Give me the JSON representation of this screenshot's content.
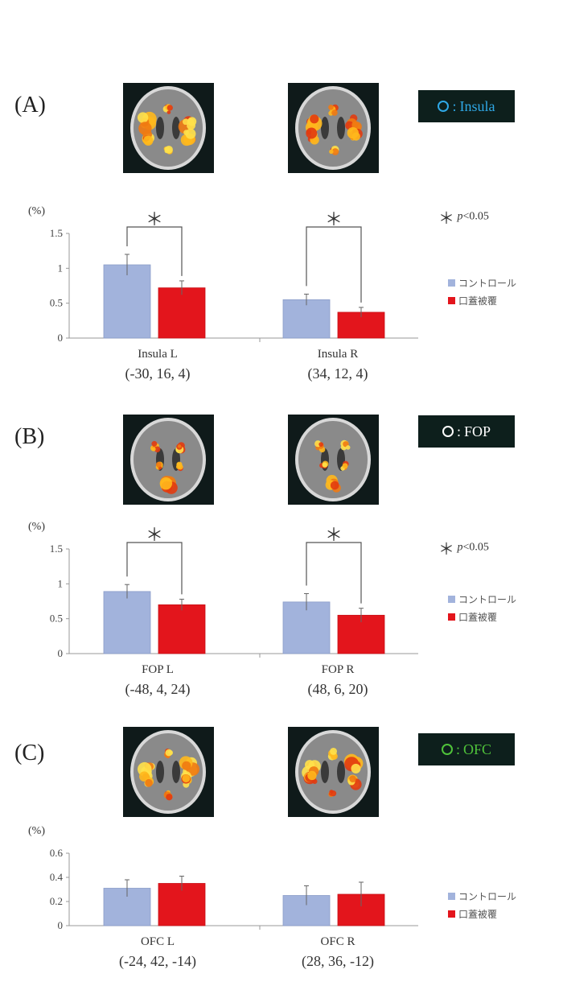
{
  "colors": {
    "control": "#a2b3dc",
    "treatment": "#e3151c",
    "insula_circle": "#2fa8e6",
    "fop_circle": "#ffffff",
    "ofc_circle": "#4fc23a",
    "roi_box_bg": "#0d1f1c"
  },
  "legend": {
    "control": "■コントロール",
    "treatment": "■口蓋被覆"
  },
  "sig_note": {
    "star": "＊",
    "p": "p",
    "rest": "<0.05"
  },
  "panels": [
    {
      "label": "(A)",
      "roi": "Insula",
      "roi_sep": ":"
    },
    {
      "label": "(B)",
      "roi": "FOP",
      "roi_sep": ":"
    },
    {
      "label": "(C)",
      "roi": "OFC",
      "roi_sep": ":"
    }
  ],
  "chart_data": [
    {
      "type": "bar",
      "ylabel": "(%)",
      "ylim": [
        0,
        1.5
      ],
      "yticks": [
        "0",
        "0.5",
        "1",
        "1.5"
      ],
      "categories": [
        "Insula L",
        "Insula R"
      ],
      "coords": [
        "(-30, 16, 4)",
        "(34, 12, 4)"
      ],
      "series": [
        {
          "name": "コントロール",
          "values": [
            1.05,
            0.55
          ],
          "errors": [
            0.15,
            0.08
          ]
        },
        {
          "name": "口蓋被覆",
          "values": [
            0.72,
            0.37
          ],
          "errors": [
            0.1,
            0.07
          ]
        }
      ],
      "significance": [
        "＊",
        "＊"
      ]
    },
    {
      "type": "bar",
      "ylabel": "(%)",
      "ylim": [
        0,
        1.5
      ],
      "yticks": [
        "0",
        "0.5",
        "1",
        "1.5"
      ],
      "categories": [
        "FOP L",
        "FOP R"
      ],
      "coords": [
        "(-48, 4, 24)",
        "(48, 6, 20)"
      ],
      "series": [
        {
          "name": "コントロール",
          "values": [
            0.89,
            0.74
          ],
          "errors": [
            0.1,
            0.12
          ]
        },
        {
          "name": "口蓋被覆",
          "values": [
            0.7,
            0.55
          ],
          "errors": [
            0.08,
            0.1
          ]
        }
      ],
      "significance": [
        "＊",
        "＊"
      ]
    },
    {
      "type": "bar",
      "ylabel": "(%)",
      "ylim": [
        0,
        0.6
      ],
      "yticks": [
        "0",
        "0.2",
        "0.4",
        "0.6"
      ],
      "categories": [
        "OFC L",
        "OFC R"
      ],
      "coords": [
        "(-24, 42, -14)",
        "(28, 36, -12)"
      ],
      "series": [
        {
          "name": "コントロール",
          "values": [
            0.31,
            0.25
          ],
          "errors": [
            0.07,
            0.08
          ]
        },
        {
          "name": "口蓋被覆",
          "values": [
            0.35,
            0.26
          ],
          "errors": [
            0.06,
            0.1
          ]
        }
      ],
      "significance": [
        "",
        ""
      ]
    }
  ]
}
